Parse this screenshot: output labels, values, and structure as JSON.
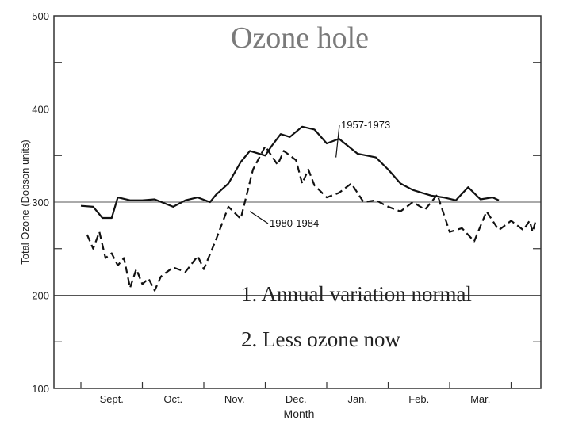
{
  "chart_data": {
    "type": "line",
    "title": "Ozone hole",
    "xlabel": "Month",
    "ylabel": "Total Ozone (Dobson units)",
    "ylim": [
      100,
      500
    ],
    "yticks": [
      "500",
      "400",
      "300",
      "200",
      "100"
    ],
    "categories": [
      "Sept.",
      "Oct.",
      "Nov.",
      "Dec.",
      "Jan.",
      "Feb.",
      "Mar."
    ],
    "series": [
      {
        "name": "1957-1973",
        "style": "solid",
        "x": [
          0.0,
          0.2,
          0.35,
          0.5,
          0.6,
          0.8,
          1.0,
          1.2,
          1.5,
          1.7,
          1.9,
          2.1,
          2.2,
          2.4,
          2.6,
          2.75,
          3.0,
          3.1,
          3.25,
          3.4,
          3.6,
          3.8,
          4.0,
          4.2,
          4.5,
          4.8,
          5.0,
          5.2,
          5.4,
          5.55,
          5.7,
          5.9,
          6.1,
          6.3,
          6.5,
          6.7,
          6.8
        ],
        "y": [
          296,
          295,
          283,
          283,
          305,
          302,
          302,
          303,
          295,
          302,
          305,
          300,
          308,
          320,
          343,
          355,
          350,
          360,
          373,
          370,
          381,
          378,
          363,
          368,
          352,
          348,
          335,
          320,
          313,
          310,
          307,
          305,
          302,
          316,
          303,
          305,
          302
        ]
      },
      {
        "name": "1980-1984",
        "style": "dashed",
        "x": [
          0.1,
          0.2,
          0.3,
          0.4,
          0.5,
          0.6,
          0.7,
          0.8,
          0.9,
          1.0,
          1.1,
          1.2,
          1.3,
          1.5,
          1.7,
          1.9,
          2.0,
          2.2,
          2.4,
          2.6,
          2.8,
          3.0,
          3.2,
          3.3,
          3.5,
          3.6,
          3.7,
          3.8,
          4.0,
          4.2,
          4.4,
          4.6,
          4.8,
          5.0,
          5.2,
          5.4,
          5.6,
          5.8,
          6.0,
          6.2,
          6.4,
          6.6,
          6.8,
          7.0,
          7.2,
          7.3,
          7.35,
          7.4
        ],
        "y": [
          265,
          250,
          268,
          240,
          245,
          232,
          240,
          208,
          228,
          212,
          218,
          205,
          220,
          230,
          225,
          242,
          228,
          260,
          295,
          282,
          335,
          360,
          340,
          355,
          345,
          320,
          335,
          318,
          305,
          310,
          320,
          300,
          302,
          295,
          290,
          300,
          292,
          308,
          268,
          272,
          258,
          290,
          270,
          280,
          270,
          280,
          268,
          280
        ]
      }
    ],
    "annotations": [
      "1957-1973",
      "1980-1984"
    ],
    "grid": true
  },
  "notes": [
    "1.  Annual variation normal",
    "2.  Less ozone now"
  ]
}
